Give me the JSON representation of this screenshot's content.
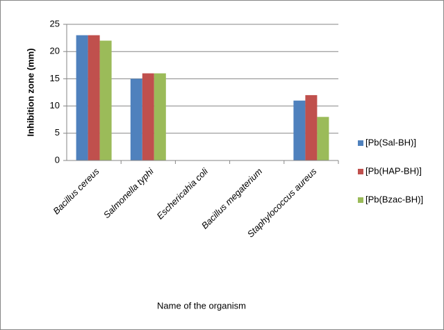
{
  "chart_data": {
    "type": "bar",
    "x_label": "Name of the organism",
    "y_label": "Inhibition zone (mm)",
    "categories": [
      "Bacillus cereus",
      "Salmonella typhi",
      "Eschericahia coli",
      "Bacillus megaterium",
      "Staphylococcus aureus"
    ],
    "series": [
      {
        "name": "[Pb(Sal-BH)]",
        "color": "#4f81bd",
        "values": [
          23,
          15,
          0,
          0,
          11
        ]
      },
      {
        "name": "[Pb(HAP-BH)]",
        "color": "#c0504d",
        "values": [
          23,
          16,
          0,
          0,
          12
        ]
      },
      {
        "name": "[Pb(Bzac-BH)]",
        "color": "#9bbb59",
        "values": [
          22,
          16,
          0,
          0,
          8
        ]
      }
    ],
    "ylim": [
      0,
      25
    ],
    "yticks": [
      0,
      5,
      10,
      15,
      20,
      25
    ],
    "grid": true,
    "legend": "right"
  }
}
